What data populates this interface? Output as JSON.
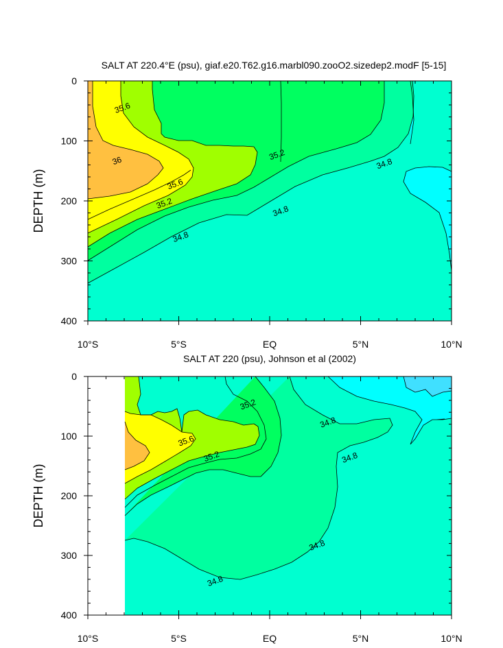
{
  "chart_data": [
    {
      "type": "contour",
      "title": "SALT AT 220.4°E (psu), giaf.e20.T62.g16.marbl090.zooO2.sizedep2.modF [5-15]",
      "xlabel": "",
      "ylabel": "DEPTH (m)",
      "x_ticks": [
        "10°S",
        "5°S",
        "EQ",
        "5°N",
        "10°N"
      ],
      "y_ticks": [
        "0",
        "100",
        "200",
        "300",
        "400"
      ],
      "xlim": [
        -10,
        10
      ],
      "ylim": [
        0,
        400
      ],
      "y_reversed": true,
      "contour_levels_labeled": [
        34.8,
        35.2,
        35.6,
        36
      ],
      "labels": [
        {
          "text": "35.6",
          "lat": -8.1,
          "depth": 45
        },
        {
          "text": "36",
          "lat": -8.4,
          "depth": 133
        },
        {
          "text": "35.6",
          "lat": -5.2,
          "depth": 172
        },
        {
          "text": "35.2",
          "lat": -5.8,
          "depth": 204
        },
        {
          "text": "34.8",
          "lat": -4.9,
          "depth": 260
        },
        {
          "text": "35.2",
          "lat": 0.4,
          "depth": 123
        },
        {
          "text": "34.8",
          "lat": 0.6,
          "depth": 217
        },
        {
          "text": "34.8",
          "lat": 6.3,
          "depth": 138
        }
      ],
      "colors": {
        "fill_36": "#ffc040",
        "fill_35_6": "#ffff00",
        "fill_35_4": "#a0ff00",
        "fill_35_2": "#00ff60",
        "fill_35_0": "#00ffa0",
        "fill_34_8": "#00ffd0",
        "fill_34_6": "#00ffff",
        "fill_34_4": "#40e0ff"
      }
    },
    {
      "type": "contour",
      "title": "SALT AT 220 (psu), Johnson et al (2002)",
      "xlabel": "",
      "ylabel": "DEPTH (m)",
      "x_ticks": [
        "10°S",
        "5°S",
        "EQ",
        "5°N",
        "10°N"
      ],
      "y_ticks": [
        "0",
        "100",
        "200",
        "300",
        "400"
      ],
      "xlim": [
        -10,
        10
      ],
      "ylim": [
        0,
        400
      ],
      "y_reversed": true,
      "data_xlim": [
        -8,
        10
      ],
      "contour_levels_labeled": [
        34.8,
        35.2,
        35.6
      ],
      "labels": [
        {
          "text": "35.2",
          "lat": -1.2,
          "depth": 47
        },
        {
          "text": "35.6",
          "lat": -4.6,
          "depth": 108
        },
        {
          "text": "35.2",
          "lat": -3.2,
          "depth": 134
        },
        {
          "text": "34.8",
          "lat": 3.2,
          "depth": 77
        },
        {
          "text": "34.8",
          "lat": 4.4,
          "depth": 136
        },
        {
          "text": "34.8",
          "lat": 2.6,
          "depth": 283
        },
        {
          "text": "34.8",
          "lat": -3.0,
          "depth": 343
        }
      ],
      "colors": {
        "fill_36": "#ffc040",
        "fill_35_6": "#ffff00",
        "fill_35_4": "#a0ff00",
        "fill_35_2": "#00ff60",
        "fill_35_0": "#00ffa0",
        "fill_34_8": "#00ffd0",
        "fill_34_6": "#00ffff",
        "fill_34_4": "#40e0ff"
      }
    }
  ]
}
